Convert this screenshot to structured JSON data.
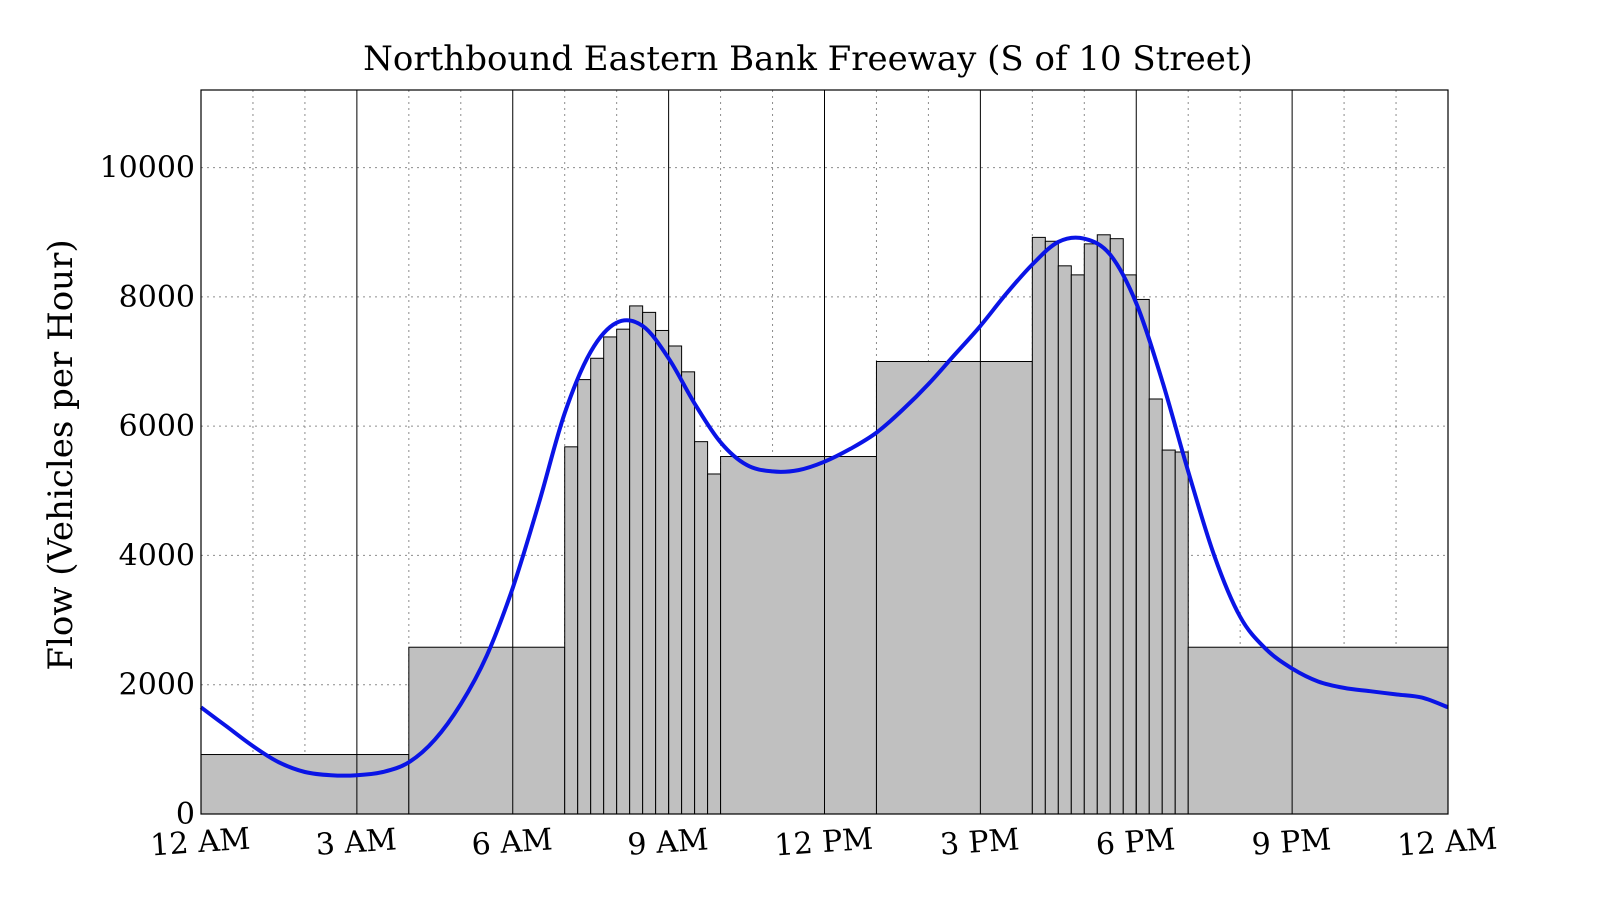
{
  "chart_data": {
    "type": "bar",
    "title": "Northbound Eastern Bank Freeway (S of 10 Street)",
    "xlabel": "",
    "ylabel": "Flow (Vehicles per Hour)",
    "xlim": [
      0,
      24
    ],
    "ylim": [
      0,
      11200
    ],
    "yticks": [
      0,
      2000,
      4000,
      6000,
      8000,
      10000
    ],
    "xticks": [
      {
        "hour": 0,
        "label": "12 AM"
      },
      {
        "hour": 3,
        "label": "3 AM"
      },
      {
        "hour": 6,
        "label": "6 AM"
      },
      {
        "hour": 9,
        "label": "9 AM"
      },
      {
        "hour": 12,
        "label": "12 PM"
      },
      {
        "hour": 15,
        "label": "3 PM"
      },
      {
        "hour": 18,
        "label": "6 PM"
      },
      {
        "hour": 21,
        "label": "9 PM"
      },
      {
        "hour": 24,
        "label": "12 AM"
      }
    ],
    "major_gridlines_hours": [
      3,
      6,
      9,
      12,
      15,
      18,
      21
    ],
    "minor_gridlines_hours": [
      1,
      2,
      4,
      5,
      7,
      8,
      10,
      11,
      13,
      14,
      16,
      17,
      19,
      20,
      22,
      23
    ],
    "grid": true,
    "bar_color": "#c0c0c0",
    "curve_color": "#0a14e6",
    "bars": [
      {
        "start": 0,
        "end": 4,
        "value": 920
      },
      {
        "start": 4,
        "end": 7,
        "value": 2580
      },
      {
        "start": 7,
        "end": 7.25,
        "value": 5680
      },
      {
        "start": 7.25,
        "end": 7.5,
        "value": 6720
      },
      {
        "start": 7.5,
        "end": 7.75,
        "value": 7050
      },
      {
        "start": 7.75,
        "end": 8,
        "value": 7380
      },
      {
        "start": 8,
        "end": 8.25,
        "value": 7500
      },
      {
        "start": 8.25,
        "end": 8.5,
        "value": 7860
      },
      {
        "start": 8.5,
        "end": 8.75,
        "value": 7760
      },
      {
        "start": 8.75,
        "end": 9,
        "value": 7480
      },
      {
        "start": 9,
        "end": 9.25,
        "value": 7240
      },
      {
        "start": 9.25,
        "end": 9.5,
        "value": 6840
      },
      {
        "start": 9.5,
        "end": 9.75,
        "value": 5760
      },
      {
        "start": 9.75,
        "end": 10,
        "value": 5260
      },
      {
        "start": 10,
        "end": 13,
        "value": 5530
      },
      {
        "start": 13,
        "end": 16,
        "value": 7000
      },
      {
        "start": 16,
        "end": 16.25,
        "value": 8920
      },
      {
        "start": 16.25,
        "end": 16.5,
        "value": 8860
      },
      {
        "start": 16.5,
        "end": 16.75,
        "value": 8480
      },
      {
        "start": 16.75,
        "end": 17,
        "value": 8340
      },
      {
        "start": 17,
        "end": 17.25,
        "value": 8820
      },
      {
        "start": 17.25,
        "end": 17.5,
        "value": 8960
      },
      {
        "start": 17.5,
        "end": 17.75,
        "value": 8900
      },
      {
        "start": 17.75,
        "end": 18,
        "value": 8340
      },
      {
        "start": 18,
        "end": 18.25,
        "value": 7960
      },
      {
        "start": 18.25,
        "end": 18.5,
        "value": 6420
      },
      {
        "start": 18.5,
        "end": 18.75,
        "value": 5630
      },
      {
        "start": 18.75,
        "end": 19,
        "value": 5600
      },
      {
        "start": 19,
        "end": 24,
        "value": 2580
      }
    ],
    "curve": {
      "x": [
        0,
        0.5,
        1,
        1.5,
        2,
        2.5,
        3,
        3.5,
        4,
        4.5,
        5,
        5.5,
        6,
        6.5,
        7,
        7.5,
        8,
        8.5,
        9,
        9.5,
        10,
        10.5,
        11,
        11.5,
        12,
        12.5,
        13,
        13.5,
        14,
        14.5,
        15,
        15.5,
        16,
        16.5,
        17,
        17.5,
        18,
        18.5,
        19,
        19.5,
        20,
        20.5,
        21,
        21.5,
        22,
        22.5,
        23,
        23.5,
        24
      ],
      "y": [
        1650,
        1350,
        1050,
        800,
        650,
        600,
        600,
        650,
        800,
        1150,
        1700,
        2450,
        3500,
        4800,
        6200,
        7150,
        7600,
        7550,
        7050,
        6350,
        5750,
        5400,
        5300,
        5320,
        5450,
        5650,
        5900,
        6250,
        6650,
        7100,
        7550,
        8050,
        8500,
        8850,
        8900,
        8650,
        7900,
        6700,
        5300,
        4000,
        3050,
        2550,
        2250,
        2050,
        1950,
        1900,
        1850,
        1800,
        1650
      ]
    }
  }
}
